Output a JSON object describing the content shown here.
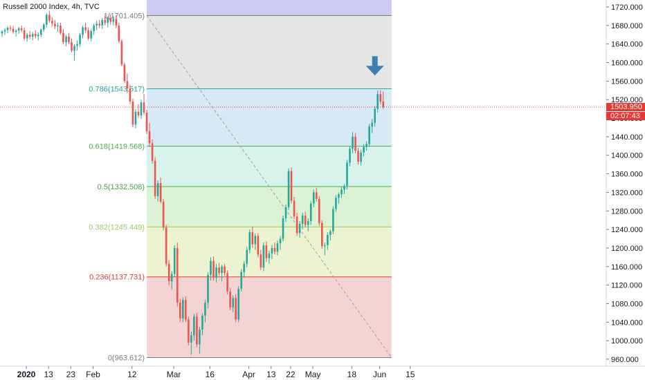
{
  "header": {
    "title": "Russell 2000 Index, 4h, TVC"
  },
  "price_tag": {
    "value": "1503.950",
    "countdown": "02:07:43",
    "color": "#e53935"
  },
  "chart_data": {
    "type": "candlestick",
    "title": "Russell 2000 Index, 4h, TVC",
    "ylim": [
      945,
      1735
    ],
    "y_ticks": [
      {
        "v": 1720,
        "label": "1720.000"
      },
      {
        "v": 1680,
        "label": "1680.000"
      },
      {
        "v": 1640,
        "label": "1640.000"
      },
      {
        "v": 1600,
        "label": "1600.000"
      },
      {
        "v": 1560,
        "label": "1560.000"
      },
      {
        "v": 1520,
        "label": "1520.000"
      },
      {
        "v": 1480,
        "label": "1480.000"
      },
      {
        "v": 1440,
        "label": "1440.000"
      },
      {
        "v": 1400,
        "label": "1400.000"
      },
      {
        "v": 1360,
        "label": "1360.000"
      },
      {
        "v": 1320,
        "label": "1320.000"
      },
      {
        "v": 1280,
        "label": "1280.000"
      },
      {
        "v": 1240,
        "label": "1240.000"
      },
      {
        "v": 1200,
        "label": "1200.000"
      },
      {
        "v": 1160,
        "label": "1160.000"
      },
      {
        "v": 1120,
        "label": "1120.000"
      },
      {
        "v": 1080,
        "label": "1080.000"
      },
      {
        "v": 1040,
        "label": "1040.000"
      },
      {
        "v": 1000,
        "label": "1000.000"
      },
      {
        "v": 960,
        "label": "960.000"
      }
    ],
    "x_ticks": [
      {
        "label": "2020",
        "bold": true,
        "t": 0
      },
      {
        "label": "13",
        "t": 8
      },
      {
        "label": "23",
        "t": 16
      },
      {
        "label": "Feb",
        "t": 24
      },
      {
        "label": "12",
        "t": 38
      },
      {
        "label": "Mar",
        "t": 53
      },
      {
        "label": "16",
        "t": 66
      },
      {
        "label": "Apr",
        "t": 80
      },
      {
        "label": "13",
        "t": 88
      },
      {
        "label": "22",
        "t": 95
      },
      {
        "label": "May",
        "t": 103
      },
      {
        "label": "18",
        "t": 117
      },
      {
        "label": "Jun",
        "t": 127
      },
      {
        "label": "15",
        "t": 138
      }
    ],
    "last_price": 1503.95,
    "fib_levels": [
      {
        "ratio": "1",
        "value": 1701.405,
        "label": "1(1701.405)",
        "line": "#787b86",
        "text": "#787b86"
      },
      {
        "ratio": "0.786",
        "value": 1543.517,
        "label": "0.786(1543.517)",
        "line": "#26a69a",
        "text": "#26a69a"
      },
      {
        "ratio": "0.618",
        "value": 1419.568,
        "label": "0.618(1419.568)",
        "line": "#4caf50",
        "text": "#4caf50"
      },
      {
        "ratio": "0.5",
        "value": 1332.508,
        "label": "0.5(1332.508)",
        "line": "#4caf50",
        "text": "#43a047"
      },
      {
        "ratio": "0.382",
        "value": 1245.449,
        "label": "0.382(1245.449)",
        "line": "#9ccc65",
        "text": "#9ccc65"
      },
      {
        "ratio": "0.236",
        "value": 1137.731,
        "label": "0.236(1137.731)",
        "line": "#e53935",
        "text": "#e53935"
      },
      {
        "ratio": "0",
        "value": 963.612,
        "label": "0(963.612)",
        "line": "#787b86",
        "text": "#787b86"
      }
    ],
    "fib_zones": [
      {
        "from": 1701.405,
        "to": 1735,
        "color": "#ccccf2"
      },
      {
        "from": 1543.517,
        "to": 1701.405,
        "color": "#e5e5e5"
      },
      {
        "from": 1419.568,
        "to": 1543.517,
        "color": "#d7e9f5"
      },
      {
        "from": 1332.508,
        "to": 1419.568,
        "color": "#d8f2ec"
      },
      {
        "from": 1245.449,
        "to": 1332.508,
        "color": "#dcf2d4"
      },
      {
        "from": 1137.731,
        "to": 1245.449,
        "color": "#ecf3d0"
      },
      {
        "from": 963.612,
        "to": 1137.731,
        "color": "#f4d4d2"
      }
    ],
    "fib_start_t": 52,
    "fib_end_t": 140,
    "trend_line": {
      "from": {
        "t": 52,
        "v": 1701.405
      },
      "to": {
        "t": 140,
        "v": 963.612
      }
    },
    "colors": {
      "up": "#26a69a",
      "down": "#ef5350",
      "arrow": "#3f7fb0"
    },
    "arrow_at": {
      "t": 134,
      "v": 1590
    },
    "candles": [
      [
        1663,
        1670,
        1655,
        1667
      ],
      [
        1667,
        1674,
        1660,
        1670
      ],
      [
        1670,
        1678,
        1663,
        1675
      ],
      [
        1675,
        1680,
        1668,
        1673
      ],
      [
        1673,
        1679,
        1662,
        1666
      ],
      [
        1666,
        1672,
        1656,
        1669
      ],
      [
        1669,
        1677,
        1662,
        1674
      ],
      [
        1674,
        1680,
        1666,
        1670
      ],
      [
        1670,
        1676,
        1648,
        1652
      ],
      [
        1652,
        1664,
        1645,
        1660
      ],
      [
        1660,
        1668,
        1650,
        1656
      ],
      [
        1656,
        1666,
        1648,
        1662
      ],
      [
        1662,
        1670,
        1652,
        1657
      ],
      [
        1657,
        1665,
        1648,
        1660
      ],
      [
        1660,
        1674,
        1655,
        1671
      ],
      [
        1671,
        1685,
        1666,
        1682
      ],
      [
        1682,
        1706,
        1676,
        1703
      ],
      [
        1703,
        1712,
        1686,
        1690
      ],
      [
        1690,
        1698,
        1678,
        1684
      ],
      [
        1684,
        1692,
        1672,
        1678
      ],
      [
        1678,
        1686,
        1666,
        1680
      ],
      [
        1680,
        1686,
        1660,
        1664
      ],
      [
        1664,
        1672,
        1640,
        1644
      ],
      [
        1644,
        1660,
        1635,
        1656
      ],
      [
        1656,
        1664,
        1640,
        1644
      ],
      [
        1644,
        1652,
        1622,
        1626
      ],
      [
        1626,
        1640,
        1604,
        1636
      ],
      [
        1636,
        1648,
        1626,
        1640
      ],
      [
        1640,
        1664,
        1634,
        1660
      ],
      [
        1660,
        1680,
        1652,
        1676
      ],
      [
        1676,
        1686,
        1664,
        1670
      ],
      [
        1670,
        1676,
        1648,
        1652
      ],
      [
        1652,
        1672,
        1646,
        1668
      ],
      [
        1668,
        1684,
        1660,
        1680
      ],
      [
        1680,
        1690,
        1670,
        1684
      ],
      [
        1684,
        1692,
        1674,
        1680
      ],
      [
        1680,
        1696,
        1672,
        1692
      ],
      [
        1692,
        1702,
        1680,
        1686
      ],
      [
        1686,
        1700,
        1676,
        1696
      ],
      [
        1696,
        1704,
        1682,
        1688
      ],
      [
        1688,
        1700,
        1680,
        1694
      ],
      [
        1694,
        1702,
        1674,
        1680
      ],
      [
        1680,
        1686,
        1642,
        1646
      ],
      [
        1646,
        1650,
        1592,
        1596
      ],
      [
        1596,
        1600,
        1556,
        1560
      ],
      [
        1560,
        1576,
        1534,
        1544
      ],
      [
        1544,
        1552,
        1510,
        1516
      ],
      [
        1516,
        1522,
        1460,
        1466
      ],
      [
        1466,
        1500,
        1458,
        1494
      ],
      [
        1494,
        1510,
        1480,
        1486
      ],
      [
        1486,
        1520,
        1478,
        1514
      ],
      [
        1514,
        1532,
        1488,
        1492
      ],
      [
        1492,
        1498,
        1446,
        1452
      ],
      [
        1452,
        1470,
        1418,
        1426
      ],
      [
        1426,
        1434,
        1382,
        1388
      ],
      [
        1388,
        1396,
        1306,
        1312
      ],
      [
        1312,
        1346,
        1300,
        1340
      ],
      [
        1340,
        1352,
        1296,
        1300
      ],
      [
        1300,
        1306,
        1238,
        1244
      ],
      [
        1244,
        1250,
        1160,
        1166
      ],
      [
        1166,
        1174,
        1120,
        1128
      ],
      [
        1128,
        1150,
        1110,
        1144
      ],
      [
        1144,
        1206,
        1138,
        1200
      ],
      [
        1200,
        1212,
        1074,
        1082
      ],
      [
        1082,
        1090,
        1040,
        1048
      ],
      [
        1048,
        1094,
        1040,
        1088
      ],
      [
        1088,
        1096,
        1040,
        1046
      ],
      [
        1046,
        1052,
        990,
        996
      ],
      [
        996,
        1020,
        970,
        1012
      ],
      [
        1012,
        1058,
        1000,
        1052
      ],
      [
        1052,
        1060,
        986,
        992
      ],
      [
        992,
        1030,
        972,
        1024
      ],
      [
        1024,
        1060,
        1012,
        1054
      ],
      [
        1054,
        1088,
        1040,
        1082
      ],
      [
        1082,
        1148,
        1070,
        1142
      ],
      [
        1142,
        1180,
        1130,
        1172
      ],
      [
        1172,
        1182,
        1130,
        1136
      ],
      [
        1136,
        1166,
        1126,
        1158
      ],
      [
        1158,
        1168,
        1140,
        1146
      ],
      [
        1146,
        1164,
        1128,
        1160
      ],
      [
        1160,
        1166,
        1140,
        1146
      ],
      [
        1146,
        1152,
        1100,
        1106
      ],
      [
        1106,
        1114,
        1066,
        1072
      ],
      [
        1072,
        1098,
        1062,
        1092
      ],
      [
        1092,
        1100,
        1040,
        1046
      ],
      [
        1046,
        1118,
        1040,
        1112
      ],
      [
        1112,
        1154,
        1106,
        1148
      ],
      [
        1148,
        1172,
        1136,
        1166
      ],
      [
        1166,
        1202,
        1158,
        1196
      ],
      [
        1196,
        1240,
        1188,
        1234
      ],
      [
        1234,
        1246,
        1200,
        1208
      ],
      [
        1208,
        1232,
        1196,
        1226
      ],
      [
        1226,
        1232,
        1180,
        1186
      ],
      [
        1186,
        1196,
        1152,
        1158
      ],
      [
        1158,
        1212,
        1150,
        1206
      ],
      [
        1206,
        1214,
        1170,
        1178
      ],
      [
        1178,
        1194,
        1166,
        1188
      ],
      [
        1188,
        1206,
        1176,
        1200
      ],
      [
        1200,
        1212,
        1186,
        1192
      ],
      [
        1192,
        1216,
        1184,
        1210
      ],
      [
        1210,
        1226,
        1196,
        1220
      ],
      [
        1220,
        1270,
        1214,
        1264
      ],
      [
        1264,
        1294,
        1256,
        1288
      ],
      [
        1288,
        1372,
        1282,
        1366
      ],
      [
        1366,
        1374,
        1296,
        1302
      ],
      [
        1302,
        1310,
        1262,
        1268
      ],
      [
        1268,
        1276,
        1226,
        1232
      ],
      [
        1232,
        1258,
        1222,
        1252
      ],
      [
        1252,
        1276,
        1240,
        1270
      ],
      [
        1270,
        1278,
        1244,
        1250
      ],
      [
        1250,
        1264,
        1236,
        1258
      ],
      [
        1258,
        1302,
        1250,
        1296
      ],
      [
        1296,
        1326,
        1288,
        1320
      ],
      [
        1320,
        1330,
        1300,
        1306
      ],
      [
        1306,
        1312,
        1248,
        1254
      ],
      [
        1254,
        1260,
        1198,
        1204
      ],
      [
        1204,
        1212,
        1184,
        1206
      ],
      [
        1206,
        1234,
        1196,
        1228
      ],
      [
        1228,
        1240,
        1216,
        1236
      ],
      [
        1236,
        1290,
        1230,
        1284
      ],
      [
        1284,
        1314,
        1278,
        1308
      ],
      [
        1308,
        1320,
        1296,
        1316
      ],
      [
        1316,
        1332,
        1308,
        1326
      ],
      [
        1326,
        1338,
        1316,
        1334
      ],
      [
        1334,
        1390,
        1326,
        1384
      ],
      [
        1384,
        1420,
        1376,
        1414
      ],
      [
        1414,
        1450,
        1404,
        1440
      ],
      [
        1440,
        1448,
        1404,
        1410
      ],
      [
        1410,
        1416,
        1380,
        1386
      ],
      [
        1386,
        1412,
        1378,
        1406
      ],
      [
        1406,
        1424,
        1398,
        1418
      ],
      [
        1418,
        1430,
        1410,
        1424
      ],
      [
        1424,
        1468,
        1418,
        1462
      ],
      [
        1462,
        1478,
        1448,
        1470
      ],
      [
        1470,
        1506,
        1462,
        1500
      ],
      [
        1500,
        1540,
        1492,
        1532
      ],
      [
        1532,
        1540,
        1510,
        1516
      ],
      [
        1516,
        1538,
        1500,
        1504
      ]
    ]
  }
}
